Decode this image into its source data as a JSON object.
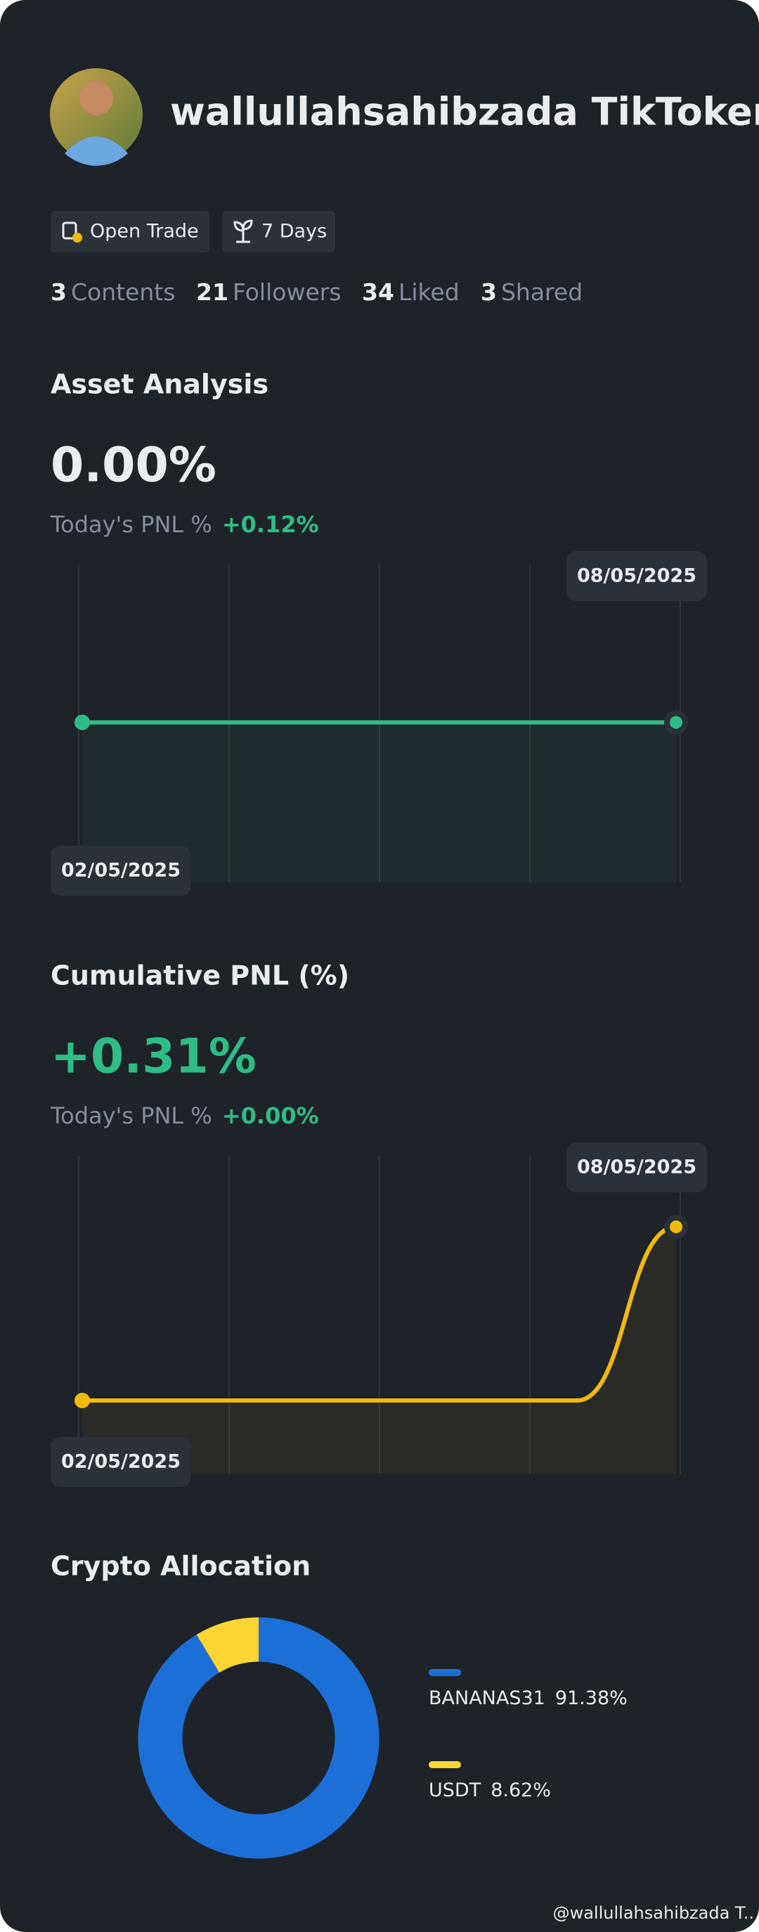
{
  "profile": {
    "name": "wallullahsahibzada TikToker",
    "badges": [
      "Open Trade",
      "7 Days"
    ],
    "stats": [
      {
        "value": 3,
        "label": "Contents"
      },
      {
        "value": 21,
        "label": "Followers"
      },
      {
        "value": 34,
        "label": "Liked"
      },
      {
        "value": 3,
        "label": "Shared"
      }
    ]
  },
  "asset_analysis": {
    "title": "Asset Analysis",
    "value": "0.00%",
    "today_label": "Today's PNL %",
    "today_value": "+0.12%",
    "chart": {
      "type": "line",
      "categories": [
        "02/05/2025",
        null,
        null,
        null,
        null,
        null,
        "08/05/2025"
      ],
      "values": [
        0,
        0,
        0,
        0,
        0,
        0,
        0
      ],
      "color": "#2ebd85"
    }
  },
  "cumulative_pnl": {
    "title": "Cumulative PNL (%)",
    "value": "+0.31%",
    "today_label": "Today's PNL %",
    "today_value": "+0.00%",
    "chart": {
      "type": "line",
      "categories": [
        "02/05/2025",
        null,
        null,
        null,
        null,
        null,
        "08/05/2025"
      ],
      "values": [
        0,
        0,
        0,
        0,
        0,
        0,
        0.31
      ],
      "color": "#f0b90b"
    }
  },
  "crypto_allocation": {
    "title": "Crypto Allocation",
    "chart": {
      "type": "pie",
      "categories": [
        "BANANAS31",
        "USDT"
      ],
      "values": [
        91.38,
        8.62
      ],
      "value_labels": [
        "91.38%",
        "8.62%"
      ],
      "colors": [
        "#1c6fd6",
        "#fcd535"
      ]
    }
  },
  "watermark": "@wallullahsahibzada T.."
}
